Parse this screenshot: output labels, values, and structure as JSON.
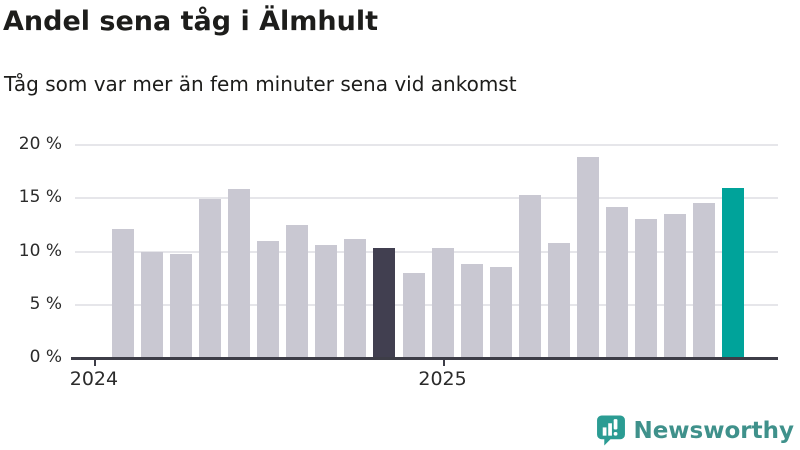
{
  "header": {
    "title": "Andel sena tåg i Älmhult",
    "subtitle": "Tåg som var mer än fem minuter sena vid ankomst"
  },
  "footer": {
    "brand": "Newsworthy",
    "icon": "newsworthy-speech-bubble-barchart-icon"
  },
  "colors": {
    "bar_default": "#c9c8d2",
    "bar_highlight_dark": "#413f50",
    "bar_highlight_teal": "#00a39a",
    "axis_line": "#3d3d47",
    "gridline": "#e6e6ea",
    "text": "#1d1d1b",
    "brand_text_teal": "#3f918b",
    "brand_icon_teal": "#2b9c93"
  },
  "chart_data": {
    "type": "bar",
    "title": "Andel sena tåg i Älmhult",
    "subtitle": "Tåg som var mer än fem minuter sena vid ankomst",
    "unit": "%",
    "x_axis": "monthly time series, 22 months starting Feb 2024",
    "values": [
      12.1,
      10.0,
      9.8,
      14.9,
      15.9,
      11.0,
      12.5,
      10.6,
      11.2,
      10.3,
      8.0,
      10.3,
      8.8,
      8.5,
      15.3,
      10.8,
      18.9,
      14.2,
      13.1,
      13.5,
      14.6,
      16.0
    ],
    "highlight_dark_index": 9,
    "highlight_teal_index": 21,
    "ylim": [
      0,
      20
    ],
    "yticks": [
      {
        "value": 0,
        "label": "0 %"
      },
      {
        "value": 5,
        "label": "5 %"
      },
      {
        "value": 10,
        "label": "10 %"
      },
      {
        "value": 15,
        "label": "15 %"
      },
      {
        "value": 20,
        "label": "20 %"
      }
    ],
    "xticks": [
      {
        "label": "2024",
        "bar_index": -1
      },
      {
        "label": "2025",
        "bar_index": 11
      }
    ],
    "grid": true,
    "legend": "none"
  }
}
